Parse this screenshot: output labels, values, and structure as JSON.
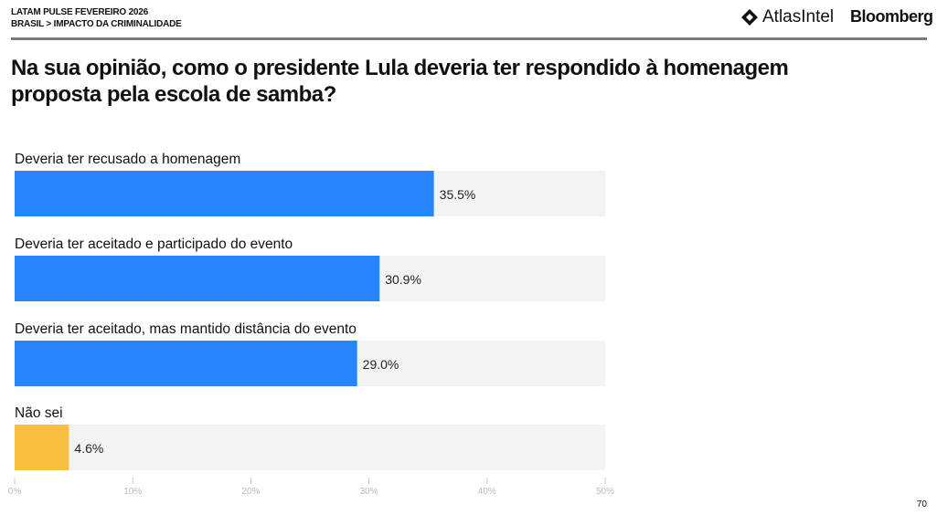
{
  "header": {
    "line1": "LATAM PULSE FEVEREIRO 2026",
    "line2": "BRASIL > IMPACTO DA CRIMINALIDADE",
    "logo_atlas": "AtlasIntel",
    "logo_bloomberg": "Bloomberg"
  },
  "page_number": "70",
  "chart_data": {
    "type": "bar",
    "orientation": "horizontal",
    "title": "Na sua opinião, como o presidente Lula deveria ter respondido à homenagem proposta pela escola de samba?",
    "categories": [
      "Deveria ter recusado a homenagem",
      "Deveria ter aceitado e participado do evento",
      "Deveria ter aceitado, mas mantido distância do evento",
      "Não sei"
    ],
    "values": [
      35.5,
      30.9,
      29.0,
      4.6
    ],
    "data_labels": [
      "35.5%",
      "30.9%",
      "29.0%",
      "4.6%"
    ],
    "colors": [
      "#2684fc",
      "#2684fc",
      "#2684fc",
      "#f9bf41"
    ],
    "track_color": "#f3f3f3",
    "xlim": [
      0,
      50
    ],
    "xticks": [
      0,
      10,
      20,
      30,
      40,
      50
    ],
    "xtick_labels": [
      "0%",
      "10%",
      "20%",
      "30%",
      "40%",
      "50%"
    ],
    "grid": false
  }
}
